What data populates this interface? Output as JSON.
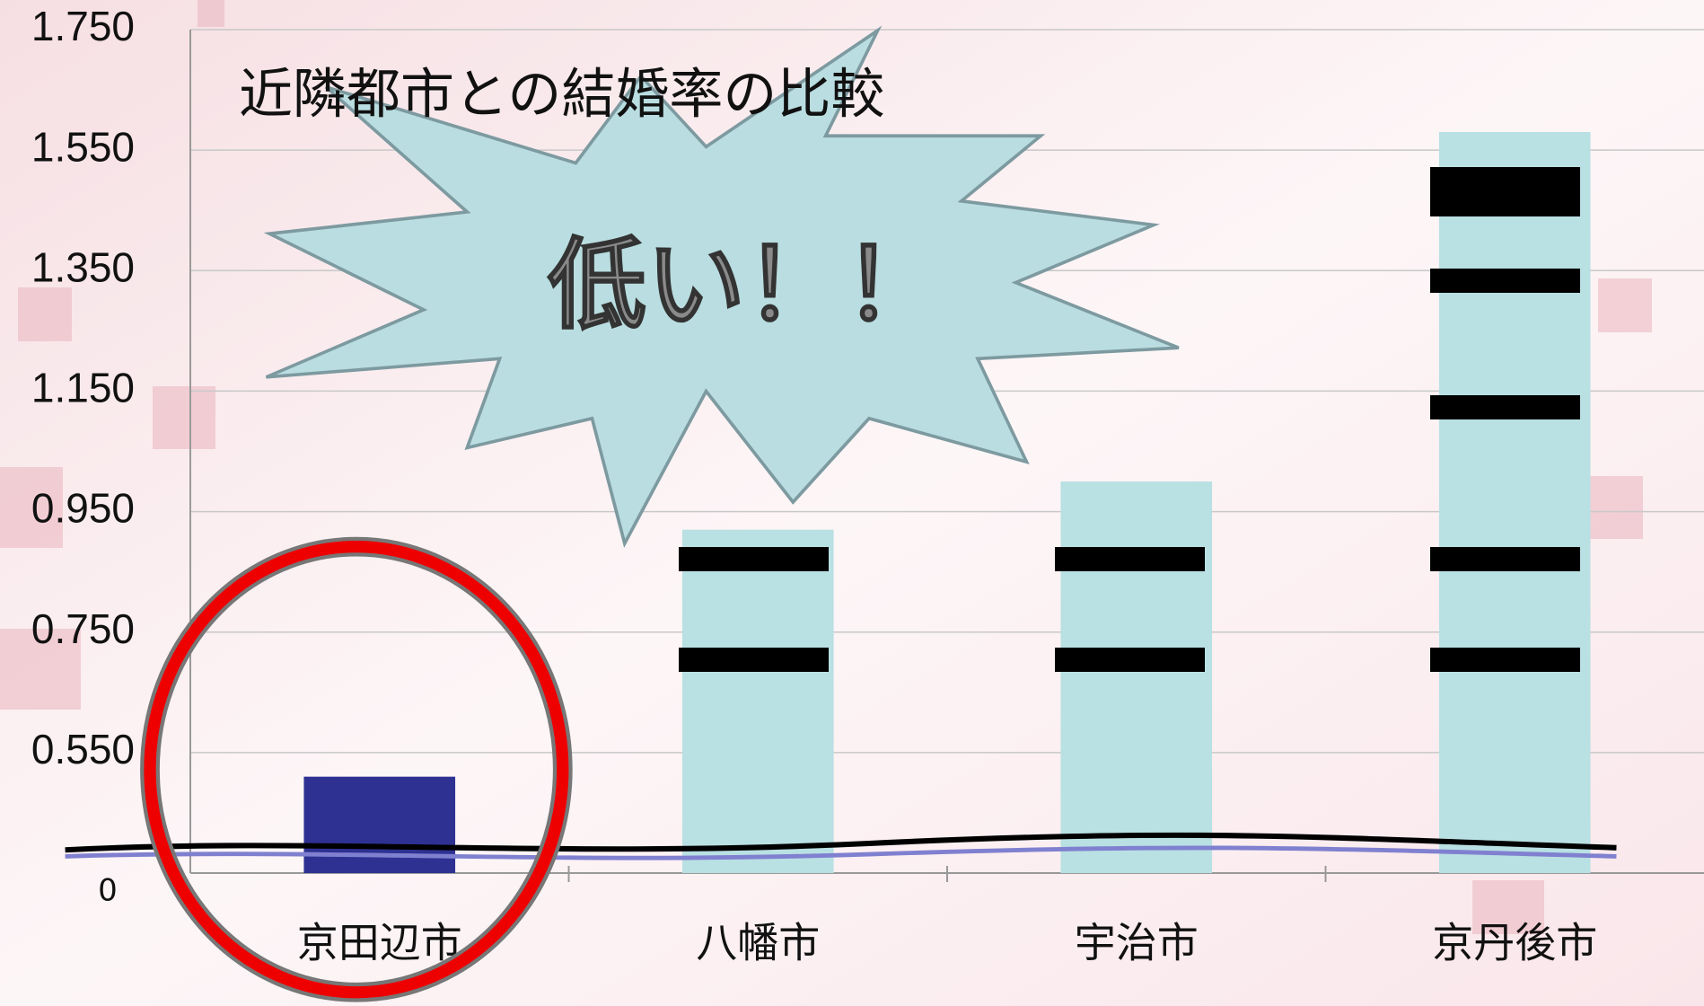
{
  "chart_data": {
    "type": "bar",
    "title": "近隣都市との結婚率の比較",
    "annotation": "低い！！",
    "categories": [
      "京田辺市",
      "八幡市",
      "宇治市",
      "京丹後市"
    ],
    "values": [
      0.51,
      0.92,
      1.0,
      1.58
    ],
    "colors": [
      "#2e3192",
      "#b9e0e3",
      "#b9e0e3",
      "#b9e0e3"
    ],
    "ylim": [
      0.35,
      1.75
    ],
    "yticks": [
      {
        "value": 0.55,
        "label": "0.550"
      },
      {
        "value": 0.75,
        "label": "0.750"
      },
      {
        "value": 0.95,
        "label": "0.950"
      },
      {
        "value": 1.15,
        "label": "1.150"
      },
      {
        "value": 1.35,
        "label": "1.350"
      },
      {
        "value": 1.55,
        "label": "1.550"
      },
      {
        "value": 1.75,
        "label": "1.750"
      }
    ],
    "axis_break_label": "0",
    "grid": true
  }
}
